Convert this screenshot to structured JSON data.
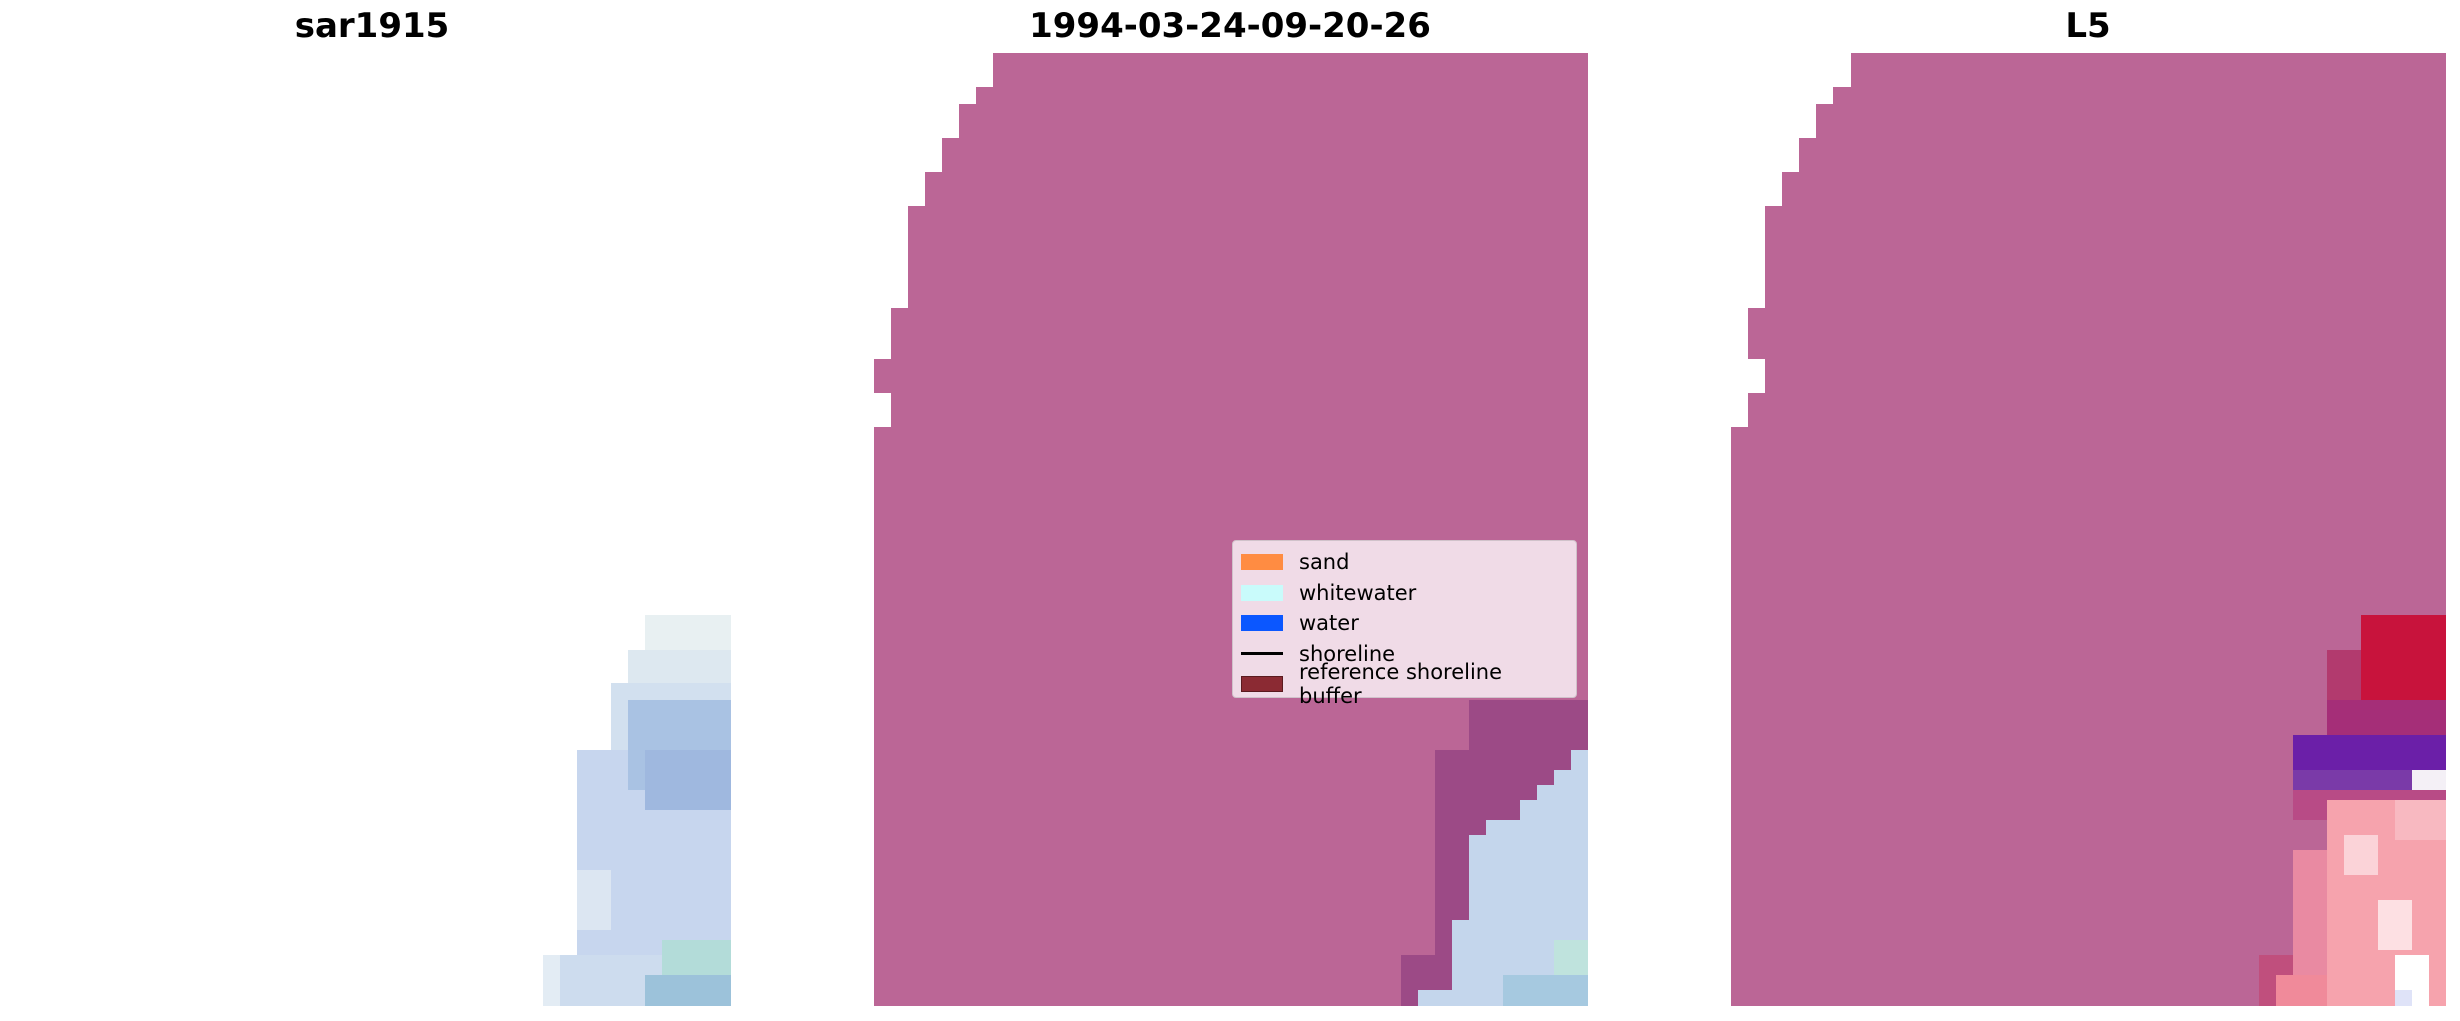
{
  "panels": [
    {
      "title": "sar1915"
    },
    {
      "title": "1994-03-24-09-20-26"
    },
    {
      "title": "L5"
    }
  ],
  "legend": {
    "items": [
      {
        "label": "sand",
        "color": "#ff8c42",
        "kind": "patch"
      },
      {
        "label": "whitewater",
        "color": "#c9fbfb",
        "kind": "patch"
      },
      {
        "label": "water",
        "color": "#0b57ff",
        "kind": "patch"
      },
      {
        "label": "shoreline",
        "color": "#000000",
        "kind": "line"
      },
      {
        "label": "reference shoreline buffer",
        "color": "#8b2a33",
        "kind": "patch"
      }
    ]
  },
  "colors": {
    "mask": "#bb6696",
    "mask_dark": "#9c4a86",
    "water_light": "#c4d6ec",
    "red_band": "#c8133c",
    "purple_band": "#6b1fa8",
    "pink": "#f6a3ad"
  }
}
